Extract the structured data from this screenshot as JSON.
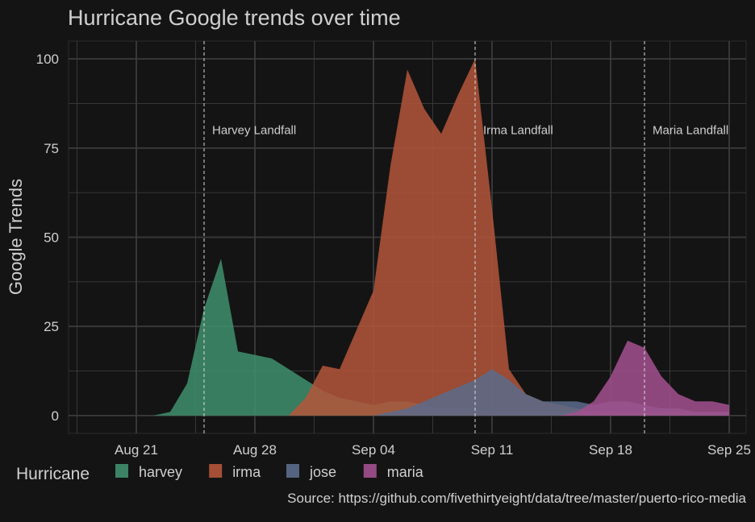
{
  "chart_data": {
    "type": "area",
    "title": "Hurricane Google trends over time",
    "xlabel": "",
    "ylabel": "Google Trends",
    "caption": "Source: https://github.com/fivethirtyeight/data/tree/master/puerto-rico-media",
    "legend": {
      "title": "Hurricane",
      "position": "bottom-left"
    },
    "grid": true,
    "x_axis": {
      "type": "date",
      "range": [
        "2017-08-17",
        "2017-09-26"
      ],
      "ticks": [
        {
          "date": "2017-08-21",
          "label": "Aug 21"
        },
        {
          "date": "2017-08-28",
          "label": "Aug 28"
        },
        {
          "date": "2017-09-04",
          "label": "Sep 04"
        },
        {
          "date": "2017-09-11",
          "label": "Sep 11"
        },
        {
          "date": "2017-09-18",
          "label": "Sep 18"
        },
        {
          "date": "2017-09-25",
          "label": "Sep 25"
        }
      ]
    },
    "y_axis": {
      "range": [
        -5,
        105
      ],
      "ticks": [
        0,
        25,
        50,
        75,
        100
      ]
    },
    "colors": {
      "background": "#141414",
      "panel": "#141414",
      "grid": "#3b3b3b",
      "text": "#cfcfcf",
      "harvey": "#3f8f6d",
      "irma": "#b4553a",
      "jose": "#5b6b8c",
      "maria": "#a3508f"
    },
    "annotations": [
      {
        "label": "Harvey Landfall",
        "date": "2017-08-25",
        "y": 80
      },
      {
        "label": "Irma Landfall",
        "date": "2017-09-10",
        "y": 80
      },
      {
        "label": "Maria Landfall",
        "date": "2017-09-20",
        "y": 80
      }
    ],
    "x": [
      "2017-08-20",
      "2017-08-21",
      "2017-08-22",
      "2017-08-23",
      "2017-08-24",
      "2017-08-25",
      "2017-08-26",
      "2017-08-27",
      "2017-08-28",
      "2017-08-29",
      "2017-08-30",
      "2017-08-31",
      "2017-09-01",
      "2017-09-02",
      "2017-09-03",
      "2017-09-04",
      "2017-09-05",
      "2017-09-06",
      "2017-09-07",
      "2017-09-08",
      "2017-09-09",
      "2017-09-10",
      "2017-09-11",
      "2017-09-12",
      "2017-09-13",
      "2017-09-14",
      "2017-09-15",
      "2017-09-16",
      "2017-09-17",
      "2017-09-18",
      "2017-09-19",
      "2017-09-20",
      "2017-09-21",
      "2017-09-22",
      "2017-09-23",
      "2017-09-24",
      "2017-09-25"
    ],
    "series": [
      {
        "name": "harvey",
        "values": [
          0,
          0,
          0,
          1,
          9,
          30,
          44,
          18,
          17,
          16,
          13,
          10,
          7,
          5,
          4,
          3,
          4,
          4,
          3,
          2,
          2,
          2,
          1,
          1,
          1,
          1,
          1,
          1,
          0,
          0,
          0,
          0,
          0,
          0,
          0,
          0,
          0
        ]
      },
      {
        "name": "irma",
        "values": [
          0,
          0,
          0,
          0,
          0,
          0,
          0,
          0,
          0,
          0,
          0,
          5,
          14,
          13,
          24,
          35,
          70,
          97,
          86,
          79,
          90,
          100,
          58,
          13,
          6,
          4,
          3,
          2,
          1,
          1,
          1,
          1,
          1,
          1,
          1,
          1,
          1
        ]
      },
      {
        "name": "jose",
        "values": [
          0,
          0,
          0,
          0,
          0,
          0,
          0,
          0,
          0,
          0,
          0,
          0,
          0,
          0,
          0,
          0,
          1,
          2,
          4,
          6,
          8,
          10,
          13,
          10,
          6,
          4,
          4,
          4,
          3,
          4,
          4,
          3,
          2,
          2,
          1,
          1,
          1
        ]
      },
      {
        "name": "maria",
        "values": [
          0,
          0,
          0,
          0,
          0,
          0,
          0,
          0,
          0,
          0,
          0,
          0,
          0,
          0,
          0,
          0,
          0,
          0,
          0,
          0,
          0,
          0,
          0,
          0,
          0,
          0,
          0,
          1,
          4,
          11,
          21,
          19,
          11,
          6,
          4,
          4,
          3
        ]
      }
    ]
  }
}
